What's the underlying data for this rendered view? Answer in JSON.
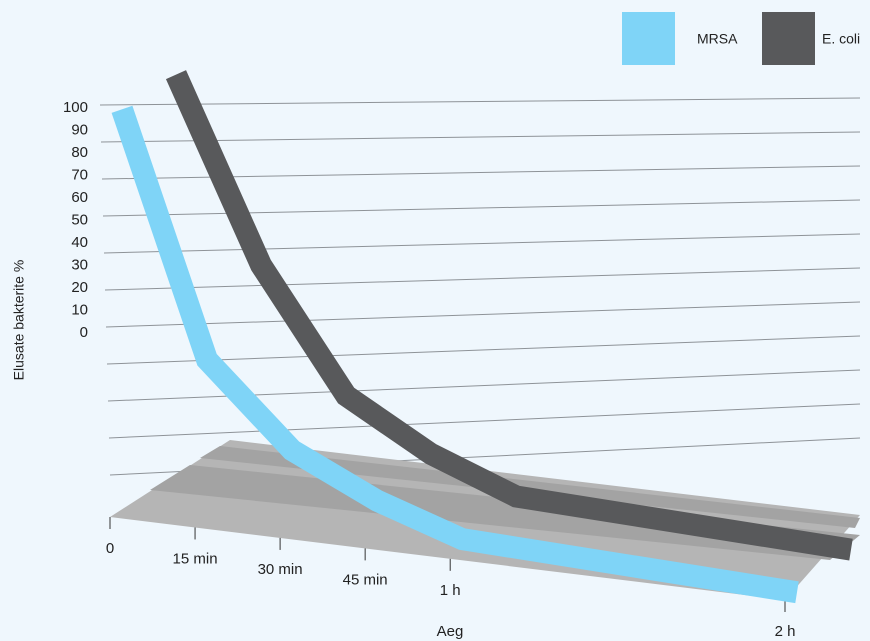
{
  "chart_data": {
    "type": "line3d",
    "categories": [
      "0",
      "15 min",
      "30 min",
      "45 min",
      "1 h",
      "2 h"
    ],
    "series": [
      {
        "name": "MRSA",
        "color": "#7fd4f7",
        "values": [
          100,
          40,
          20,
          10,
          3,
          0
        ]
      },
      {
        "name": "E. coli",
        "color": "#58595b",
        "values": [
          100,
          55,
          25,
          13,
          5,
          2
        ]
      }
    ],
    "ylim": [
      0,
      100
    ],
    "yticks": [
      0,
      10,
      20,
      30,
      40,
      50,
      60,
      70,
      80,
      90,
      100
    ],
    "xlabel": "Aeg",
    "ylabel": "Elusate bakterite %",
    "grid": true
  }
}
